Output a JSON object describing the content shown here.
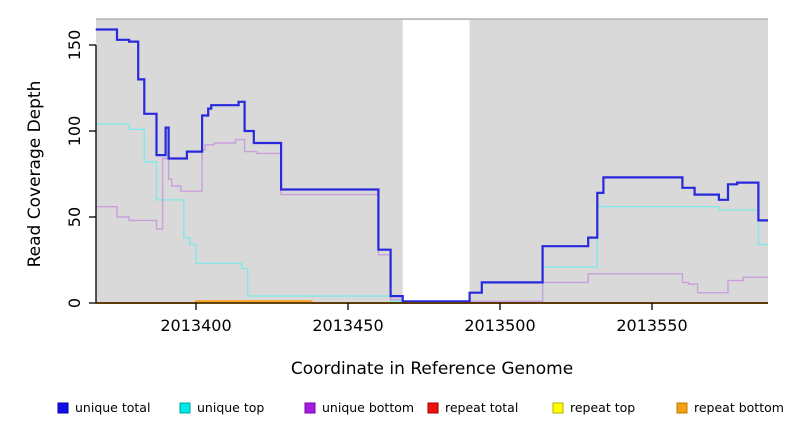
{
  "chart_data": {
    "type": "line-step",
    "title": "",
    "xlabel": "Coordinate in Reference Genome",
    "ylabel": "Read Coverage Depth",
    "xlim": [
      2013367,
      2013588
    ],
    "ylim": [
      0,
      160
    ],
    "grid": false,
    "plot_bg_color": "#d9d9d9",
    "masked_region": {
      "x_start": 2013468,
      "x_end": 2013490,
      "color": "#ffffff"
    },
    "x_ticks": [
      2013400,
      2013450,
      2013500,
      2013550
    ],
    "x_tick_labels": [
      "2013400",
      "2013450",
      "2013500",
      "2013550"
    ],
    "y_ticks": [
      0,
      50,
      100,
      150
    ],
    "y_tick_labels": [
      "0",
      "50",
      "100",
      "150"
    ],
    "legend_position": "bottom",
    "series": [
      {
        "name": "repeat total",
        "line_color": "#ee1111",
        "legend_fill": "#ee1111",
        "legend_border": "#a00000",
        "line_width": 1.4,
        "points": [
          [
            2013367,
            0
          ]
        ]
      },
      {
        "name": "repeat top",
        "line_color": "#ffff00",
        "legend_fill": "#ffff00",
        "legend_border": "#b0b000",
        "line_width": 1.4,
        "points": [
          [
            2013367,
            0
          ]
        ]
      },
      {
        "name": "unique top",
        "line_color": "#84e8e8",
        "legend_fill": "#00e8e8",
        "legend_border": "#00a0a0",
        "line_width": 1.4,
        "points": [
          [
            2013367,
            104
          ],
          [
            2013378,
            101
          ],
          [
            2013383,
            82
          ],
          [
            2013387,
            60
          ],
          [
            2013396,
            38
          ],
          [
            2013398,
            34
          ],
          [
            2013400,
            23
          ],
          [
            2013415,
            20
          ],
          [
            2013417,
            4
          ],
          [
            2013464,
            1
          ],
          [
            2013514,
            21
          ],
          [
            2013532,
            56
          ],
          [
            2013572,
            54
          ],
          [
            2013585,
            34
          ]
        ]
      },
      {
        "name": "unique bottom",
        "line_color": "#c9a0dc",
        "legend_fill": "#a21fdd",
        "legend_border": "#7a00a8",
        "line_width": 1.4,
        "points": [
          [
            2013367,
            56
          ],
          [
            2013374,
            50
          ],
          [
            2013378,
            48
          ],
          [
            2013387,
            43
          ],
          [
            2013389,
            84
          ],
          [
            2013391,
            72
          ],
          [
            2013392,
            68
          ],
          [
            2013395,
            65
          ],
          [
            2013402,
            89
          ],
          [
            2013403,
            92
          ],
          [
            2013406,
            93
          ],
          [
            2013413,
            95
          ],
          [
            2013416,
            88
          ],
          [
            2013420,
            87
          ],
          [
            2013428,
            63
          ],
          [
            2013460,
            28
          ],
          [
            2013464,
            2
          ],
          [
            2013468,
            1
          ],
          [
            2013514,
            12
          ],
          [
            2013529,
            17
          ],
          [
            2013560,
            12
          ],
          [
            2013562,
            11
          ],
          [
            2013565,
            6
          ],
          [
            2013575,
            13
          ],
          [
            2013580,
            15
          ]
        ]
      },
      {
        "name": "unique total",
        "line_color": "#2828dc",
        "legend_fill": "#0f0fea",
        "legend_border": "#0000b0",
        "line_width": 2.2,
        "points": [
          [
            2013367,
            159
          ],
          [
            2013374,
            153
          ],
          [
            2013378,
            152
          ],
          [
            2013381,
            130
          ],
          [
            2013383,
            110
          ],
          [
            2013387,
            86
          ],
          [
            2013390,
            102
          ],
          [
            2013391,
            84
          ],
          [
            2013397,
            88
          ],
          [
            2013402,
            109
          ],
          [
            2013404,
            113
          ],
          [
            2013405,
            115
          ],
          [
            2013414,
            117
          ],
          [
            2013416,
            100
          ],
          [
            2013419,
            93
          ],
          [
            2013428,
            66
          ],
          [
            2013460,
            31
          ],
          [
            2013464,
            4
          ],
          [
            2013468,
            1
          ],
          [
            2013490,
            6
          ],
          [
            2013494,
            12
          ],
          [
            2013514,
            33
          ],
          [
            2013529,
            38
          ],
          [
            2013532,
            64
          ],
          [
            2013534,
            73
          ],
          [
            2013560,
            67
          ],
          [
            2013564,
            63
          ],
          [
            2013572,
            60
          ],
          [
            2013575,
            69
          ],
          [
            2013578,
            70
          ],
          [
            2013585,
            48
          ]
        ]
      },
      {
        "name": "repeat bottom",
        "line_color": "#ff9e1b",
        "legend_fill": "#f5a011",
        "legend_border": "#c07800",
        "line_width": 2,
        "points": [
          [
            2013367,
            0
          ],
          [
            2013400,
            1
          ],
          [
            2013438,
            0
          ]
        ]
      }
    ],
    "legend_order": [
      "unique total",
      "unique top",
      "unique bottom",
      "repeat total",
      "repeat top",
      "repeat bottom"
    ]
  }
}
